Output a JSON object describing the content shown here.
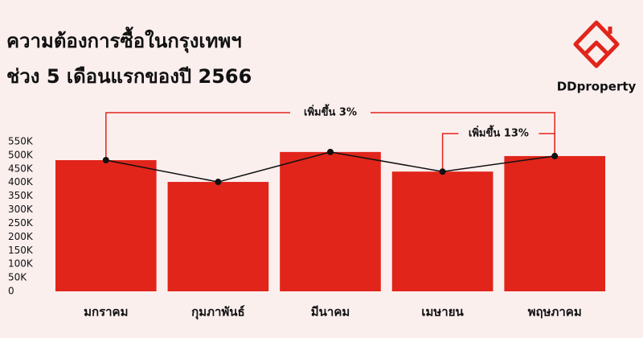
{
  "brand": "DDproperty",
  "chart_data": {
    "type": "bar",
    "title": "ความต้องการซื้อในกรุงเทพฯ",
    "subtitle": "ช่วง 5 เดือนแรกของปี 2566",
    "categories": [
      "มกราคม",
      "กุมภาพันธ์",
      "มีนาคม",
      "เมษายน",
      "พฤษภาคม"
    ],
    "values": [
      482000,
      402000,
      512000,
      440000,
      497000
    ],
    "color": "#e1251b",
    "line_color": "#111111",
    "ylim": [
      0,
      550000
    ],
    "yticks": [
      0,
      {
        "value": 50000,
        "label": "50K"
      },
      {
        "value": 100000,
        "label": "100K"
      },
      {
        "value": 150000,
        "label": "150K"
      },
      {
        "value": 200000,
        "label": "200K"
      },
      {
        "value": 250000,
        "label": "250K"
      },
      {
        "value": 300000,
        "label": "300K"
      },
      {
        "value": 350000,
        "label": "350K"
      },
      {
        "value": 400000,
        "label": "400K"
      },
      {
        "value": 450000,
        "label": "450K"
      },
      {
        "value": 500000,
        "label": "500K"
      },
      {
        "value": 550000,
        "label": "550K"
      }
    ],
    "annotations": [
      "เพิ่มขึ้น 3%",
      "เพิ่มขึ้น 13%"
    ]
  }
}
